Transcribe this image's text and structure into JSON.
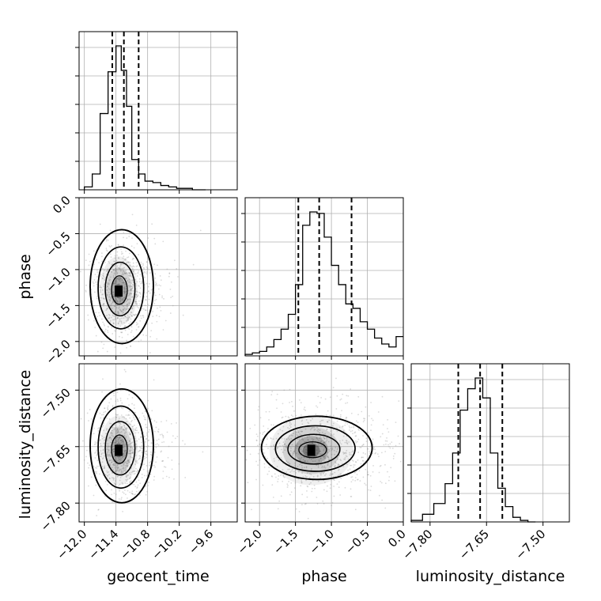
{
  "chart_data": {
    "type": "corner",
    "parameters": [
      "geocent_time",
      "phase",
      "luminosity_distance"
    ],
    "axis_labels": {
      "geocent_time": "geocent_time",
      "phase": "phase",
      "luminosity_distance": "luminosity_distance"
    },
    "ranges": {
      "geocent_time": [
        -12.1,
        -9.1
      ],
      "phase": [
        -2.2,
        0.0
      ],
      "luminosity_distance": [
        -7.85,
        -7.43
      ]
    },
    "ticks": {
      "geocent_time": [
        "−12.0",
        "−11.4",
        "−10.8",
        "−10.2",
        "−9.6"
      ],
      "phase": [
        "−2.0",
        "−1.5",
        "−1.0",
        "−0.5",
        "0.0"
      ],
      "luminosity_distance": [
        "−7.80",
        "−7.65",
        "−7.50"
      ]
    },
    "tick_values": {
      "geocent_time": [
        -12.0,
        -11.4,
        -10.8,
        -10.2,
        -9.6
      ],
      "phase": [
        -2.0,
        -1.5,
        -1.0,
        -0.5,
        0.0
      ],
      "luminosity_distance": [
        -7.8,
        -7.65,
        -7.5
      ]
    },
    "quantiles": {
      "geocent_time": [
        -11.47,
        -11.25,
        -10.97
      ],
      "phase": [
        -1.46,
        -1.17,
        -0.72
      ],
      "luminosity_distance": [
        -7.725,
        -7.667,
        -7.608
      ]
    },
    "histograms": {
      "geocent_time": {
        "bin_edges": [
          -12.0,
          -11.85,
          -11.7,
          -11.55,
          -11.4,
          -11.3,
          -11.2,
          -11.1,
          -10.97,
          -10.85,
          -10.7,
          -10.55,
          -10.4,
          -10.25,
          -10.1,
          -9.95,
          -9.8,
          -9.7
        ],
        "counts": [
          2,
          11,
          53,
          82,
          100,
          83,
          58,
          21,
          11,
          6,
          5,
          3,
          2,
          1,
          1,
          0,
          0
        ]
      },
      "phase": {
        "bin_edges": [
          -2.2,
          -2.1,
          -2.0,
          -1.9,
          -1.8,
          -1.7,
          -1.6,
          -1.5,
          -1.4,
          -1.3,
          -1.2,
          -1.1,
          -1.0,
          -0.9,
          -0.8,
          -0.7,
          -0.6,
          -0.5,
          -0.4,
          -0.3,
          -0.2,
          -0.1,
          0.0
        ],
        "counts": [
          1,
          2,
          3,
          6,
          11,
          18,
          28,
          48,
          88,
          97,
          96,
          80,
          61,
          48,
          35,
          32,
          23,
          18,
          12,
          8,
          6,
          13
        ]
      },
      "luminosity_distance": {
        "bin_edges": [
          -7.85,
          -7.82,
          -7.79,
          -7.76,
          -7.74,
          -7.72,
          -7.7,
          -7.68,
          -7.66,
          -7.64,
          -7.62,
          -7.6,
          -7.58,
          -7.56,
          -7.54,
          -7.52
        ],
        "counts": [
          1,
          5,
          12,
          25,
          45,
          73,
          87,
          94,
          81,
          45,
          22,
          10,
          3,
          1,
          0
        ]
      }
    },
    "density_centers": {
      "geocent_time_vs_phase": {
        "x": -11.35,
        "y": -1.3
      },
      "geocent_time_vs_luminosity_distance": {
        "x": -11.35,
        "y": -7.66
      },
      "phase_vs_luminosity_distance": {
        "x": -1.28,
        "y": -7.66
      }
    },
    "grid": true,
    "color": "#000000"
  }
}
